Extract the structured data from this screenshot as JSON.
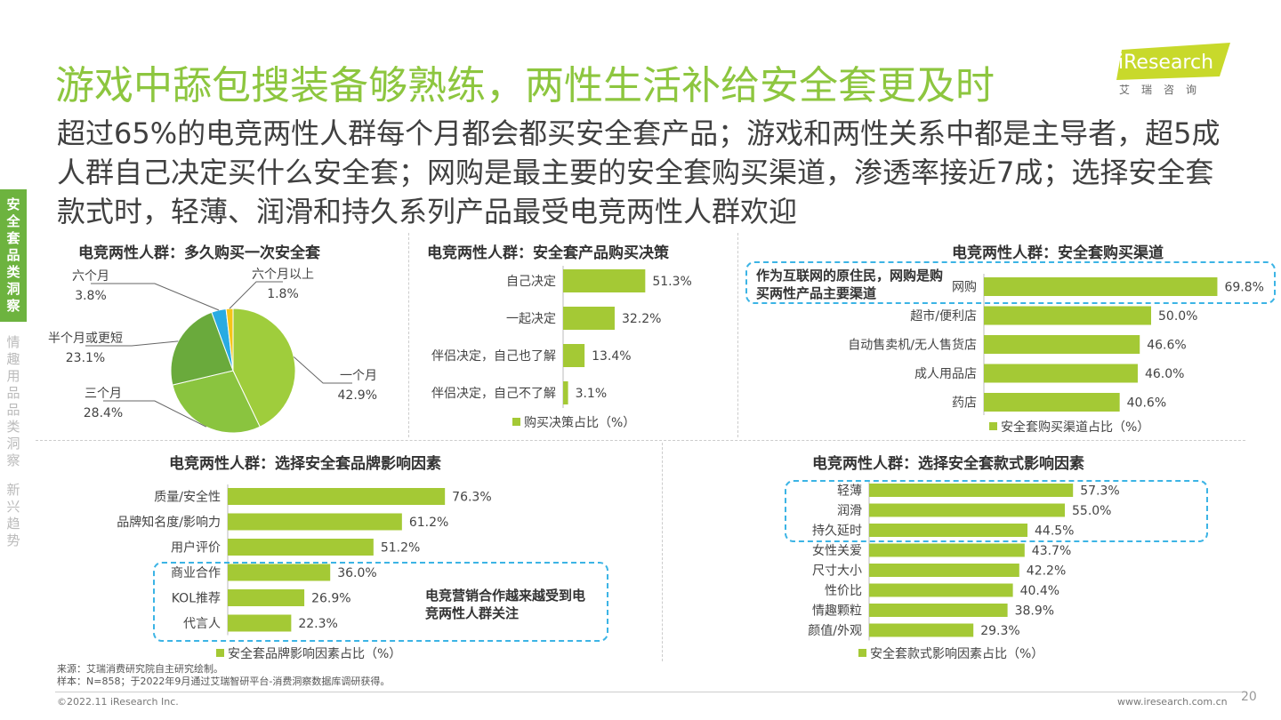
{
  "header": {
    "title": "游戏中舔包搜装备够熟练，两性生活补给安全套更及时",
    "subtitle": "超过65%的电竞两性人群每个月都会都买安全套产品；游戏和两性关系中都是主导者，超5成人群自己决定买什么安全套；网购是最主要的安全套购买渠道，渗透率接近7成；选择安全套款式时，轻薄、润滑和持久系列产品最受电竞两性人群欢迎"
  },
  "logo": {
    "text": "iResearch",
    "subtext": "艾瑞咨询"
  },
  "sidenav": {
    "active": "安全套品类洞察",
    "items": [
      "情趣用品品类洞察",
      "新兴趋势"
    ]
  },
  "colors": {
    "accent": "#8dc63f",
    "bar": "#a4c935",
    "callout": "#3cb4e5",
    "active_nav": "#6db33f"
  },
  "chart_data": [
    {
      "type": "pie",
      "title": "电竞两性人群：多久购买一次安全套",
      "series": [
        {
          "values": [
            {
              "label": "一个月",
              "value": 42.9,
              "color": "#9fcd3c"
            },
            {
              "label": "三个月",
              "value": 28.4,
              "color": "#8ac43f"
            },
            {
              "label": "半个月或更短",
              "value": 23.1,
              "color": "#6aaa3c"
            },
            {
              "label": "六个月",
              "value": 3.8,
              "color": "#29abe2"
            },
            {
              "label": "六个月以上",
              "value": 1.8,
              "color": "#f5c518"
            }
          ]
        }
      ],
      "value_labels": [
        "42.9%",
        "28.4%",
        "23.1%",
        "3.8%",
        "1.8%"
      ]
    },
    {
      "type": "bar",
      "orientation": "horizontal",
      "title": "电竞两性人群：安全套产品购买决策",
      "categories": [
        "自己决定",
        "一起决定",
        "伴侣决定，自己也了解",
        "伴侣决定，自己不了解"
      ],
      "series": [
        {
          "name": "购买决策占比（%）",
          "values": [
            51.3,
            32.2,
            13.4,
            3.1
          ]
        }
      ],
      "value_labels": [
        "51.3%",
        "32.2%",
        "13.4%",
        "3.1%"
      ],
      "legend": "bottom"
    },
    {
      "type": "bar",
      "orientation": "horizontal",
      "title": "电竞两性人群：安全套购买渠道",
      "categories": [
        "网购",
        "超市/便利店",
        "自动售卖机/无人售货店",
        "成人用品店",
        "药店"
      ],
      "series": [
        {
          "name": "安全套购买渠道占比（%）",
          "values": [
            69.8,
            50.0,
            46.6,
            46.0,
            40.6
          ]
        }
      ],
      "value_labels": [
        "69.8%",
        "50.0%",
        "46.6%",
        "46.0%",
        "40.6%"
      ],
      "annotation": "作为互联网的原住民，网购是购买两性产品主要渠道",
      "legend": "bottom"
    },
    {
      "type": "bar",
      "orientation": "horizontal",
      "title": "电竞两性人群：选择安全套品牌影响因素",
      "categories": [
        "质量/安全性",
        "品牌知名度/影响力",
        "用户评价",
        "商业合作",
        "KOL推荐",
        "代言人"
      ],
      "series": [
        {
          "name": "安全套品牌影响因素占比（%）",
          "values": [
            76.3,
            61.2,
            51.2,
            36.0,
            26.9,
            22.3
          ]
        }
      ],
      "value_labels": [
        "76.3%",
        "61.2%",
        "51.2%",
        "36.0%",
        "26.9%",
        "22.3%"
      ],
      "annotation": "电竞营销合作越来越受到电竞两性人群关注",
      "legend": "bottom"
    },
    {
      "type": "bar",
      "orientation": "horizontal",
      "title": "电竞两性人群：选择安全套款式影响因素",
      "categories": [
        "轻薄",
        "润滑",
        "持久延时",
        "女性关爱",
        "尺寸大小",
        "性价比",
        "情趣颗粒",
        "颜值/外观"
      ],
      "series": [
        {
          "name": "安全套款式影响因素占比（%）",
          "values": [
            57.3,
            55.0,
            44.5,
            43.7,
            42.2,
            40.4,
            38.9,
            29.3
          ]
        }
      ],
      "value_labels": [
        "57.3%",
        "55.0%",
        "44.5%",
        "43.7%",
        "42.2%",
        "40.4%",
        "38.9%",
        "29.3%"
      ],
      "legend": "bottom"
    }
  ],
  "footer": {
    "source": "来源：艾瑞消费研究院自主研究绘制。",
    "sample": "样本：N=858；于2022年9月通过艾瑞智研平台-消费洞察数据库调研获得。",
    "copyright": "©2022.11 iResearch Inc.",
    "website": "www.iresearch.com.cn",
    "page": "20"
  }
}
